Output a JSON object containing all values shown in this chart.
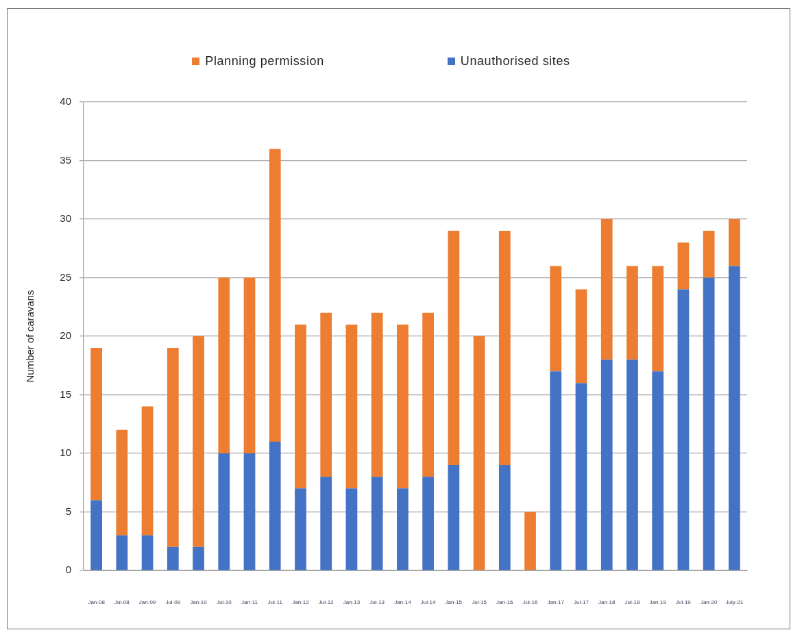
{
  "chart_data": {
    "type": "bar",
    "stacked": true,
    "categories": [
      "Jan-08",
      "Jul-08",
      "Jan-09",
      "Jul-09",
      "Jan-10",
      "Jul-10",
      "Jan-11",
      "Jul-11",
      "Jan-12",
      "Jul-12",
      "Jan-13",
      "Jul-13",
      "Jan-14",
      "Jul-14",
      "Jan-15",
      "Jul-15",
      "Jan-16",
      "Jul-16",
      "Jan-17",
      "Jul-17",
      "Jan-18",
      "Jul-18",
      "Jan-19",
      "Jul-19",
      "Jan-20",
      "July-21"
    ],
    "series": [
      {
        "name": "Unauthorised sites",
        "color": "#4472c4",
        "values": [
          6,
          3,
          3,
          2,
          2,
          10,
          10,
          11,
          7,
          8,
          7,
          8,
          7,
          8,
          9,
          0,
          9,
          0,
          17,
          16,
          18,
          18,
          17,
          24,
          25,
          26
        ]
      },
      {
        "name": "Planning permission",
        "color": "#ed7d31",
        "values": [
          13,
          9,
          11,
          17,
          18,
          15,
          15,
          25,
          14,
          14,
          14,
          14,
          14,
          14,
          20,
          20,
          20,
          5,
          9,
          8,
          12,
          8,
          9,
          4,
          4,
          4
        ]
      }
    ],
    "ylabel": "Number of caravans",
    "ylim": [
      0,
      40
    ],
    "yticks": [
      0,
      5,
      10,
      15,
      20,
      25,
      30,
      35,
      40
    ],
    "grid": "y",
    "legend": "top"
  }
}
